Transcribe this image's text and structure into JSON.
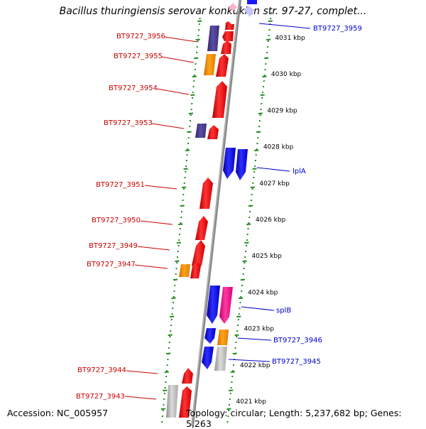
{
  "title": "Bacillus thuringiensis serovar konkukian str. 97-27, complet...",
  "footer": {
    "accession": "Accession: NC_005957",
    "summary": "Topology: circular; Length: 5,237,682 bp; Genes: 5,263"
  },
  "colors": {
    "forward_gene": "#ff1a1a",
    "reverse_gene": "#1a1aff",
    "orange_gene": "#ff9900",
    "purple_gene": "#4b3f8f",
    "pink_gene": "#ff1493",
    "gray_gene": "#c0c0c0",
    "ruler": "#228b22",
    "backbone": "#808080",
    "left_label": "#cc0000",
    "right_label": "#0000cc"
  },
  "ruler_labels": [
    "4031 kbp",
    "4030 kbp",
    "4029 kbp",
    "4028 kbp",
    "4027 kbp",
    "4026 kbp",
    "4025 kbp",
    "4024 kbp",
    "4023 kbp",
    "4022 kbp",
    "4021 kbp"
  ],
  "left_labels": [
    "BT9727_3956",
    "BT9727_3955",
    "BT9727_3954",
    "BT9727_3953",
    "BT9727_3951",
    "BT9727_3950",
    "BT9727_3949",
    "BT9727_3947",
    "BT9727_3944",
    "BT9727_3943"
  ],
  "right_labels": [
    "BT9727_3959",
    "lplA",
    "splB",
    "BT9727_3946",
    "BT9727_3945"
  ]
}
